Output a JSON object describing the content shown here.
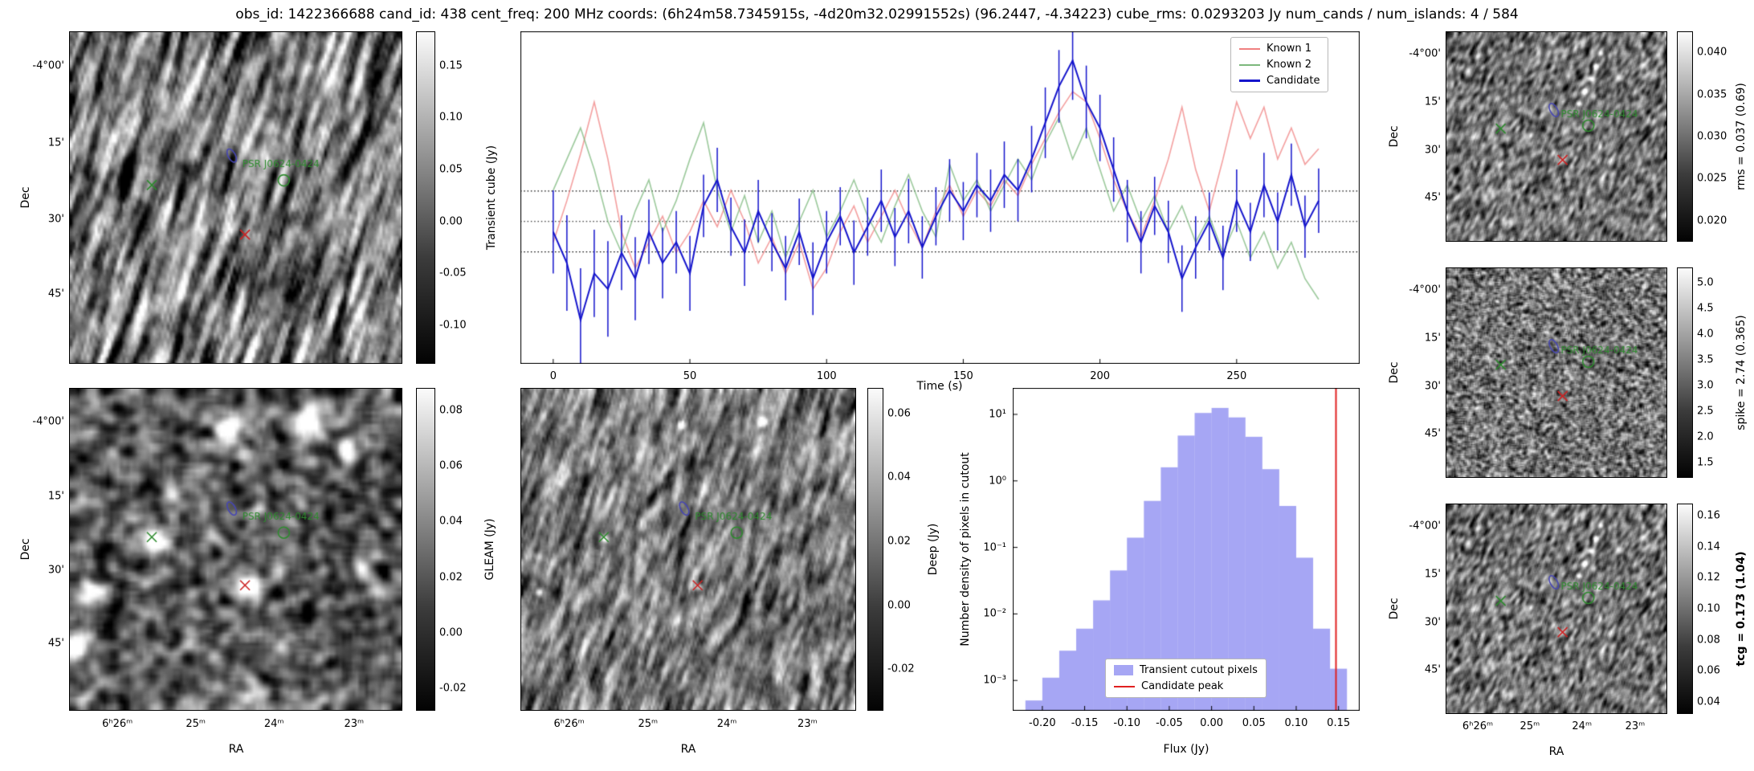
{
  "title": "obs_id: 1422366688 cand_id: 438 cent_freq: 200 MHz coords: (6h24m58.7345915s, -4d20m32.02991552s) (96.2447, -4.34223) cube_rms: 0.0293203 Jy num_cands / num_islands: 4 / 584",
  "axis": {
    "dec_label": "Dec",
    "ra_label": "RA",
    "dec_ticks": {
      "labels": [
        "-4°00'",
        "15'",
        "30'",
        "45'"
      ],
      "fracs": [
        0.105,
        0.335,
        0.565,
        0.79
      ]
    },
    "ra_ticks": {
      "labels": [
        "6ʰ26ᵐ",
        "25ᵐ",
        "24ᵐ",
        "23ᵐ"
      ],
      "fracs": [
        0.145,
        0.38,
        0.615,
        0.855
      ]
    }
  },
  "sky_markers": [
    {
      "type": "x",
      "color": "#2e8b2e",
      "x": 0.247,
      "y": 0.462
    },
    {
      "type": "x",
      "color": "#cc2222",
      "x": 0.528,
      "y": 0.612
    },
    {
      "type": "ellipse",
      "color": "#4646b4",
      "x": 0.488,
      "y": 0.373
    },
    {
      "type": "circle",
      "color": "#2e8b2e",
      "x": 0.645,
      "y": 0.448
    },
    {
      "type": "text",
      "color": "#2e8b2e",
      "x": 0.52,
      "y": 0.408,
      "label": "PSR J0624-0424"
    }
  ],
  "panels": {
    "transient_cube": {
      "colorbar_label": "Transient cube (Jy)",
      "cticks": [
        "0.15",
        "0.10",
        "0.05",
        "0.00",
        "-0.05",
        "-0.10"
      ],
      "ctick_vals": [
        0.15,
        0.1,
        0.05,
        0.0,
        -0.05,
        -0.1
      ],
      "crange": [
        -0.137,
        0.183
      ]
    },
    "gleam": {
      "colorbar_label": "GLEAM (Jy)",
      "cticks": [
        "0.08",
        "0.06",
        "0.04",
        "0.02",
        "0.00",
        "-0.02"
      ],
      "ctick_vals": [
        0.08,
        0.06,
        0.04,
        0.02,
        0.0,
        -0.02
      ],
      "crange": [
        -0.028,
        0.088
      ]
    },
    "deep": {
      "colorbar_label": "Deep (Jy)",
      "cticks": [
        "0.06",
        "0.04",
        "0.02",
        "0.00",
        "-0.02"
      ],
      "ctick_vals": [
        0.06,
        0.04,
        0.02,
        0.0,
        -0.02
      ],
      "crange": [
        -0.033,
        0.068
      ]
    },
    "rms": {
      "colorbar_label": "rms = 0.037 (0.69)",
      "cticks": [
        "0.040",
        "0.035",
        "0.030",
        "0.025",
        "0.020"
      ],
      "ctick_vals": [
        0.04,
        0.035,
        0.03,
        0.025,
        0.02
      ],
      "crange": [
        0.0175,
        0.0425
      ]
    },
    "spike": {
      "colorbar_label": "spike = 2.74 (0.365)",
      "cticks": [
        "5.0",
        "4.5",
        "4.0",
        "3.5",
        "3.0",
        "2.5",
        "2.0",
        "1.5"
      ],
      "ctick_vals": [
        5.0,
        4.5,
        4.0,
        3.5,
        3.0,
        2.5,
        2.0,
        1.5
      ],
      "crange": [
        1.2,
        5.3
      ]
    },
    "tcg": {
      "colorbar_label": "tcg = 0.173 (1.04)",
      "cticks": [
        "0.16",
        "0.14",
        "0.12",
        "0.10",
        "0.08",
        "0.06",
        "0.04"
      ],
      "ctick_vals": [
        0.16,
        0.14,
        0.12,
        0.1,
        0.08,
        0.06,
        0.04
      ],
      "crange": [
        0.032,
        0.168
      ]
    }
  },
  "chart_data": [
    {
      "type": "line",
      "title": "",
      "xlabel": "Time (s)",
      "ylabel": "Transient cube (Jy)",
      "xlim": [
        -12,
        295
      ],
      "ylim": [
        -0.137,
        0.183
      ],
      "xticks": [
        0,
        50,
        100,
        150,
        200,
        250
      ],
      "hlines": [
        0.0293,
        0,
        -0.0293
      ],
      "legend_position": "upper right",
      "x": [
        0,
        5,
        10,
        15,
        20,
        25,
        30,
        35,
        40,
        45,
        50,
        55,
        60,
        65,
        70,
        75,
        80,
        85,
        90,
        95,
        100,
        105,
        110,
        115,
        120,
        125,
        130,
        135,
        140,
        145,
        150,
        155,
        160,
        165,
        170,
        175,
        180,
        185,
        190,
        195,
        200,
        205,
        210,
        215,
        220,
        225,
        230,
        235,
        240,
        245,
        250,
        255,
        260,
        265,
        270,
        275,
        280
      ],
      "series": [
        {
          "name": "Known 1",
          "color": "#f08080",
          "values": [
            -0.02,
            0.02,
            0.065,
            0.115,
            0.06,
            -0.01,
            -0.045,
            -0.02,
            0.005,
            -0.03,
            -0.01,
            0.02,
            -0.005,
            0.03,
            0.0,
            -0.04,
            -0.015,
            -0.05,
            -0.02,
            -0.065,
            -0.045,
            -0.01,
            0.015,
            -0.02,
            0.005,
            0.03,
            0.0,
            -0.025,
            0.01,
            0.035,
            0.005,
            0.03,
            0.015,
            0.04,
            0.025,
            0.055,
            0.08,
            0.105,
            0.125,
            0.115,
            0.08,
            0.04,
            0.01,
            -0.015,
            0.02,
            0.06,
            0.11,
            0.05,
            0.01,
            0.06,
            0.115,
            0.08,
            0.11,
            0.06,
            0.09,
            0.055,
            0.07
          ]
        },
        {
          "name": "Known 2",
          "color": "#7cb87c",
          "values": [
            0.03,
            0.06,
            0.09,
            0.05,
            0.0,
            -0.03,
            0.01,
            0.04,
            -0.01,
            0.02,
            0.06,
            0.095,
            0.03,
            -0.01,
            0.025,
            -0.02,
            0.01,
            -0.035,
            0.0,
            0.03,
            -0.015,
            0.01,
            0.04,
            0.005,
            -0.02,
            0.015,
            0.045,
            0.01,
            -0.015,
            0.055,
            0.02,
            0.04,
            0.01,
            0.035,
            0.06,
            0.04,
            0.075,
            0.1,
            0.06,
            0.09,
            0.05,
            0.01,
            0.035,
            0.0,
            0.025,
            -0.01,
            0.015,
            -0.02,
            0.005,
            -0.03,
            0.0,
            -0.035,
            -0.01,
            -0.045,
            -0.02,
            -0.055,
            -0.075
          ]
        },
        {
          "name": "Candidate",
          "color": "#1414cc",
          "values": [
            -0.01,
            -0.04,
            -0.095,
            -0.05,
            -0.065,
            -0.03,
            -0.055,
            -0.01,
            -0.04,
            -0.02,
            -0.05,
            0.015,
            0.04,
            -0.005,
            -0.03,
            0.01,
            -0.02,
            -0.045,
            -0.01,
            -0.055,
            -0.02,
            0.005,
            -0.03,
            -0.005,
            0.02,
            -0.015,
            0.01,
            -0.025,
            0.005,
            0.03,
            0.01,
            0.035,
            0.02,
            0.045,
            0.03,
            0.06,
            0.095,
            0.13,
            0.155,
            0.115,
            0.09,
            0.05,
            0.01,
            -0.02,
            0.015,
            -0.01,
            -0.055,
            -0.025,
            0.0,
            -0.035,
            0.02,
            -0.01,
            0.035,
            0.0,
            0.045,
            -0.005,
            0.02
          ],
          "yerr": [
            0.04,
            0.046,
            0.05,
            0.042,
            0.046,
            0.036,
            0.04,
            0.031,
            0.034,
            0.03,
            0.036,
            0.03,
            0.031,
            0.028,
            0.032,
            0.03,
            0.028,
            0.031,
            0.032,
            0.035,
            0.03,
            0.028,
            0.031,
            0.028,
            0.03,
            0.028,
            0.031,
            0.03,
            0.028,
            0.03,
            0.028,
            0.031,
            0.03,
            0.032,
            0.03,
            0.032,
            0.034,
            0.035,
            0.038,
            0.035,
            0.032,
            0.031,
            0.03,
            0.03,
            0.028,
            0.03,
            0.032,
            0.03,
            0.028,
            0.031,
            0.03,
            0.028,
            0.031,
            0.028,
            0.03,
            0.03,
            0.031
          ]
        }
      ]
    },
    {
      "type": "bar",
      "title": "",
      "xlabel": "Flux (Jy)",
      "ylabel": "Number density of pixels in cutout",
      "yscale": "log",
      "xlim": [
        -0.235,
        0.175
      ],
      "ylim": [
        0.00035,
        25
      ],
      "xticks": [
        -0.2,
        -0.15,
        -0.1,
        -0.05,
        0.0,
        0.05,
        0.1,
        0.15
      ],
      "ytick_labels": [
        "10¹",
        "10⁰",
        "10⁻¹",
        "10⁻²",
        "10⁻³"
      ],
      "ytick_vals": [
        10,
        1,
        0.1,
        0.01,
        0.001
      ],
      "bin_width": 0.02,
      "bin_centers": [
        -0.21,
        -0.19,
        -0.17,
        -0.15,
        -0.13,
        -0.11,
        -0.09,
        -0.07,
        -0.05,
        -0.03,
        -0.01,
        0.01,
        0.03,
        0.05,
        0.07,
        0.09,
        0.11,
        0.13,
        0.15
      ],
      "densities": [
        0.0005,
        0.0011,
        0.0028,
        0.006,
        0.016,
        0.045,
        0.14,
        0.5,
        1.6,
        4.8,
        10.5,
        12.5,
        9.0,
        4.6,
        1.5,
        0.42,
        0.07,
        0.006,
        0.0015
      ],
      "fill_color": "#5c5ceb",
      "vline": {
        "x": 0.147,
        "color": "#e02020"
      },
      "legend": [
        "Transient cutout pixels",
        "Candidate peak"
      ],
      "legend_position": "lower center"
    }
  ]
}
